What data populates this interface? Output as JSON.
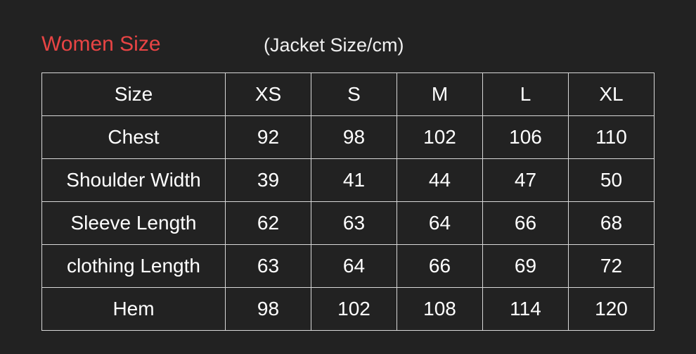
{
  "title": "Women Size",
  "subtitle": "(Jacket Size/cm)",
  "colors": {
    "title": "#e84444",
    "background": "#222222"
  },
  "table": {
    "rows": [
      {
        "label": "Size",
        "values": [
          "XS",
          "S",
          "M",
          "L",
          "XL"
        ]
      },
      {
        "label": "Chest",
        "values": [
          "92",
          "98",
          "102",
          "106",
          "110"
        ]
      },
      {
        "label": "Shoulder Width",
        "values": [
          "39",
          "41",
          "44",
          "47",
          "50"
        ]
      },
      {
        "label": "Sleeve Length",
        "values": [
          "62",
          "63",
          "64",
          "66",
          "68"
        ]
      },
      {
        "label": "clothing Length",
        "values": [
          "63",
          "64",
          "66",
          "69",
          "72"
        ]
      },
      {
        "label": "Hem",
        "values": [
          "98",
          "102",
          "108",
          "114",
          "120"
        ]
      }
    ]
  }
}
